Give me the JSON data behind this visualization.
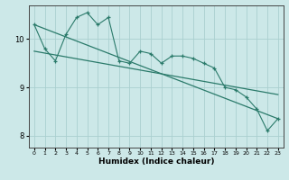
{
  "xlabel": "Humidex (Indice chaleur)",
  "x_ticks": [
    0,
    1,
    2,
    3,
    4,
    5,
    6,
    7,
    8,
    9,
    10,
    11,
    12,
    13,
    14,
    15,
    16,
    17,
    18,
    19,
    20,
    21,
    22,
    23
  ],
  "xlim": [
    -0.5,
    23.5
  ],
  "ylim": [
    7.75,
    10.7
  ],
  "yticks": [
    8,
    9,
    10
  ],
  "bg_color": "#cce8e8",
  "grid_color": "#aacfcf",
  "line_color": "#2a7a6a",
  "series1": [
    10.3,
    9.8,
    9.55,
    10.1,
    10.45,
    10.55,
    10.3,
    10.45,
    9.55,
    9.5,
    9.75,
    9.7,
    9.5,
    9.65,
    9.65,
    9.6,
    9.5,
    9.4,
    9.0,
    8.95,
    8.8,
    8.55,
    8.1,
    8.35
  ],
  "trend1_x": [
    0,
    23
  ],
  "trend1_y": [
    10.3,
    8.35
  ],
  "trend2_x": [
    0,
    23
  ],
  "trend2_y": [
    9.75,
    8.85
  ]
}
